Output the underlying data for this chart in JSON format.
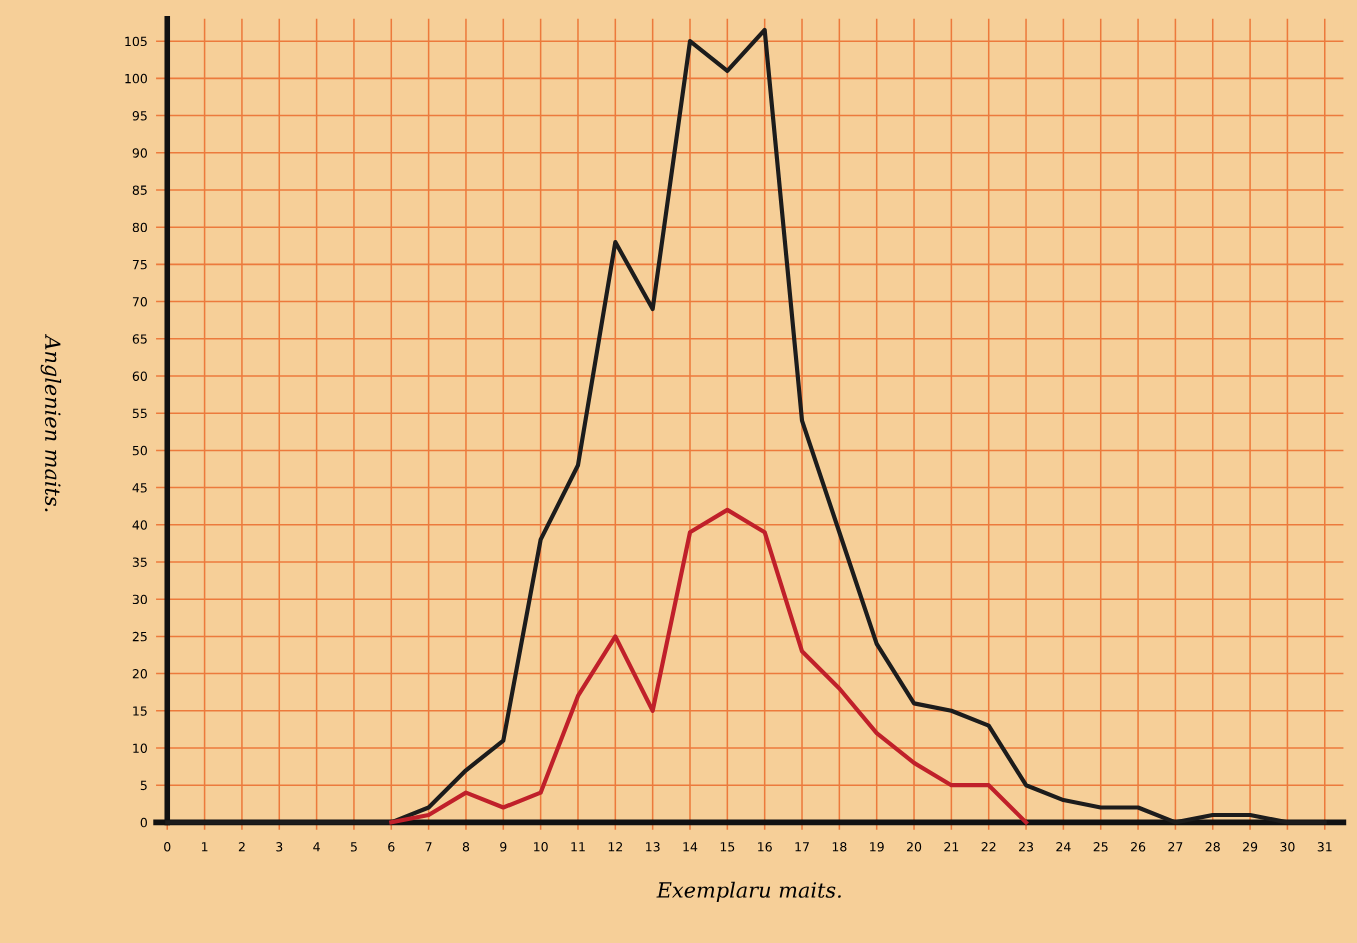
{
  "chart_data": {
    "type": "line",
    "xlabel": "Exemplaru maits.",
    "ylabel": "Anglenien maits.",
    "xlim": [
      -0.3,
      31.5
    ],
    "ylim": [
      -1,
      108
    ],
    "xticks": [
      0,
      1,
      2,
      3,
      4,
      5,
      6,
      7,
      8,
      9,
      10,
      11,
      12,
      13,
      14,
      15,
      16,
      17,
      18,
      19,
      20,
      21,
      22,
      23,
      24,
      25,
      26,
      27,
      28,
      29,
      30,
      31
    ],
    "yticks": [
      0,
      5,
      10,
      15,
      20,
      25,
      30,
      35,
      40,
      45,
      50,
      55,
      60,
      65,
      70,
      75,
      80,
      85,
      90,
      95,
      100,
      105
    ],
    "grid": true,
    "marker": "none",
    "line_style": "solid",
    "series": [
      {
        "color": "#1c1c1c",
        "x": [
          0,
          1,
          2,
          3,
          4,
          5,
          6,
          7,
          8,
          9,
          10,
          11,
          12,
          13,
          14,
          15,
          16,
          17,
          18,
          19,
          20,
          21,
          22,
          23,
          24,
          25,
          26,
          27,
          28,
          29,
          30,
          31
        ],
        "values": [
          0,
          0,
          0,
          0,
          0,
          0,
          0,
          2,
          7,
          11,
          38,
          48,
          78,
          69,
          105,
          101,
          106.5,
          54,
          39,
          24,
          16,
          15,
          13,
          5,
          3,
          2,
          2,
          0,
          1,
          1,
          0,
          0
        ]
      },
      {
        "color": "#c0202a",
        "x": [
          6,
          7,
          8,
          9,
          10,
          11,
          12,
          13,
          14,
          15,
          16,
          17,
          18,
          19,
          20,
          21,
          22,
          23
        ],
        "values": [
          0,
          1,
          4,
          2,
          4,
          17,
          25,
          15,
          39,
          42,
          39,
          23,
          18,
          12,
          8,
          5,
          5,
          0
        ]
      }
    ]
  }
}
